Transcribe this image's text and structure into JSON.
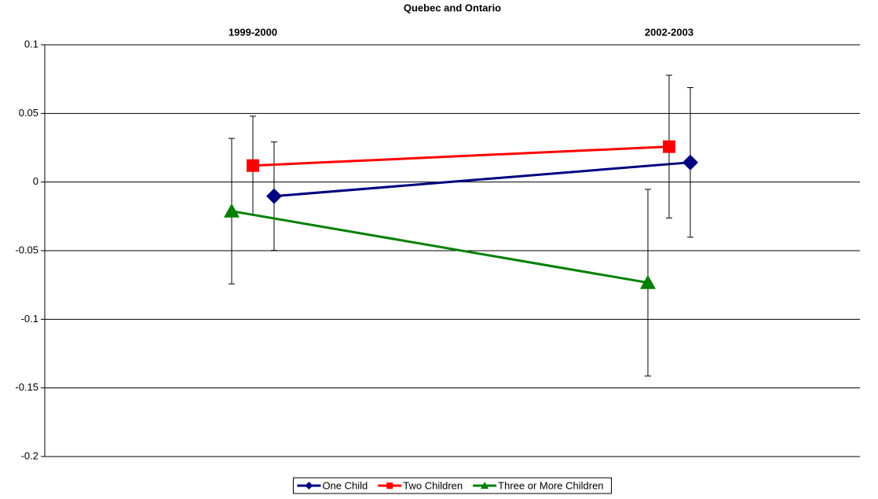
{
  "chart_data": {
    "type": "line",
    "title": "Quebec and Ontario",
    "categories": [
      "1999-2000",
      "2002-2003"
    ],
    "series": [
      {
        "name": "One Child",
        "color": "#000080",
        "marker": "diamond",
        "values": [
          -0.0103,
          0.0143
        ],
        "errors": [
          0.0395,
          0.0545
        ]
      },
      {
        "name": "Two Children",
        "color": "#ff0000",
        "marker": "square",
        "values": [
          0.012,
          0.0258
        ],
        "errors": [
          0.036,
          0.052
        ]
      },
      {
        "name": "Three or More Children",
        "color": "#008000",
        "marker": "triangle",
        "values": [
          -0.0212,
          -0.0733
        ],
        "errors": [
          0.053,
          0.068
        ]
      }
    ],
    "ylim": [
      -0.2,
      0.1
    ],
    "yticks": [
      -0.2,
      -0.15,
      -0.1,
      -0.05,
      0,
      0.05,
      0.1
    ],
    "grid": true,
    "legend": "bottom"
  }
}
